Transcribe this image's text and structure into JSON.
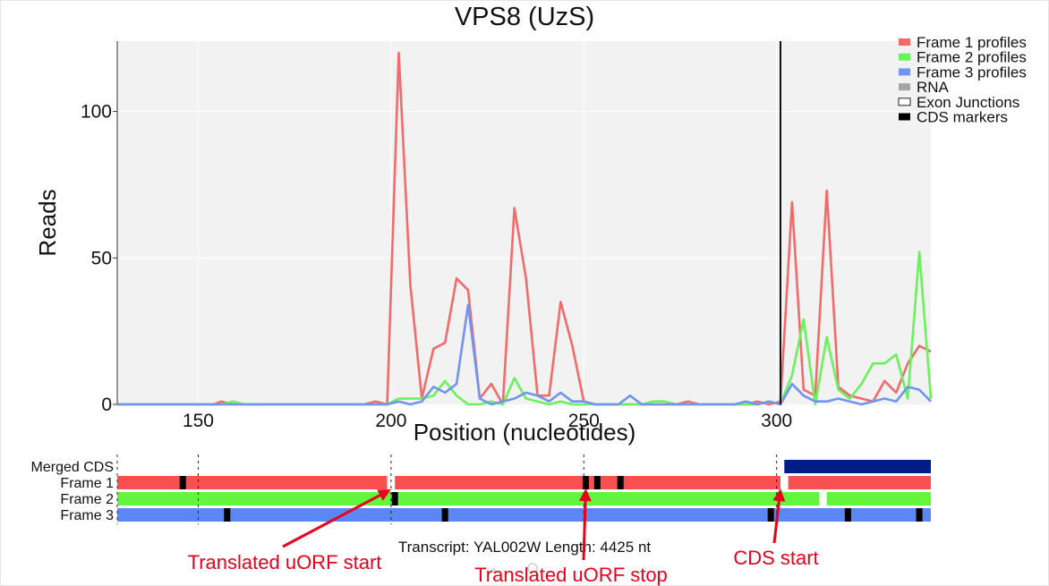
{
  "chart_data": {
    "type": "line",
    "title": "VPS8 (UzS)",
    "xlabel": "Position (nucleotides)",
    "ylabel": "Reads",
    "xlim": [
      129,
      340
    ],
    "ylim": [
      0,
      124
    ],
    "x_ticks": [
      150,
      200,
      250,
      300
    ],
    "y_ticks": [
      0,
      50,
      100
    ],
    "grid": true,
    "legend_position": "top-right",
    "cds_marker_x": 301,
    "series": [
      {
        "name": "Frame 1 profiles",
        "color": "#f26b6b",
        "x": [
          129,
          150,
          154,
          156,
          159,
          162,
          190,
          193,
          196,
          199,
          202,
          205,
          208,
          211,
          214,
          217,
          220,
          223,
          226,
          229,
          232,
          235,
          238,
          241,
          244,
          247,
          250,
          253,
          256,
          259,
          262,
          265,
          268,
          271,
          274,
          277,
          280,
          283,
          286,
          289,
          292,
          295,
          298,
          301,
          304,
          307,
          310,
          313,
          316,
          319,
          322,
          325,
          328,
          331,
          334,
          337,
          340
        ],
        "values": [
          0,
          0,
          0,
          1,
          0,
          0,
          0,
          0,
          1,
          0,
          120,
          41,
          2,
          19,
          21,
          43,
          39,
          2,
          7,
          0,
          67,
          43,
          3,
          3,
          35,
          20,
          1,
          0,
          0,
          0,
          0,
          0,
          0,
          0,
          0,
          1,
          0,
          0,
          0,
          0,
          0,
          1,
          0,
          1,
          69,
          5,
          3,
          73,
          6,
          3,
          2,
          1,
          8,
          4,
          14,
          20,
          18
        ]
      },
      {
        "name": "Frame 2 profiles",
        "color": "#6af25a",
        "x": [
          129,
          150,
          156,
          159,
          162,
          199,
          202,
          205,
          208,
          211,
          214,
          217,
          220,
          223,
          226,
          229,
          232,
          235,
          238,
          241,
          244,
          247,
          250,
          253,
          256,
          259,
          262,
          265,
          268,
          271,
          274,
          277,
          280,
          283,
          286,
          289,
          292,
          295,
          298,
          301,
          304,
          307,
          310,
          313,
          316,
          319,
          322,
          325,
          328,
          331,
          334,
          337,
          340
        ],
        "values": [
          0,
          0,
          0,
          1,
          0,
          0,
          2,
          2,
          2,
          3,
          8,
          3,
          0,
          0,
          1,
          0,
          9,
          2,
          1,
          0,
          1,
          0,
          0,
          0,
          0,
          0,
          0,
          0,
          1,
          1,
          0,
          0,
          0,
          0,
          0,
          0,
          0,
          0,
          1,
          0,
          10,
          29,
          0,
          23,
          5,
          2,
          7,
          14,
          14,
          17,
          2,
          52,
          2
        ]
      },
      {
        "name": "Frame 3 profiles",
        "color": "#6f95f0",
        "x": [
          129,
          199,
          202,
          205,
          208,
          211,
          214,
          217,
          220,
          223,
          226,
          229,
          232,
          235,
          238,
          241,
          244,
          247,
          250,
          253,
          256,
          259,
          262,
          265,
          268,
          271,
          289,
          292,
          295,
          298,
          301,
          304,
          307,
          310,
          313,
          316,
          319,
          322,
          325,
          328,
          331,
          334,
          337,
          340
        ],
        "values": [
          0,
          0,
          1,
          0,
          1,
          6,
          4,
          7,
          34,
          2,
          0,
          1,
          2,
          4,
          3,
          1,
          4,
          1,
          1,
          0,
          0,
          0,
          3,
          0,
          0,
          0,
          0,
          1,
          0,
          1,
          0,
          7,
          3,
          1,
          1,
          2,
          1,
          0,
          1,
          2,
          1,
          6,
          5,
          1
        ]
      },
      {
        "name": "RNA",
        "color": "#a6a6a6",
        "x": [],
        "values": []
      },
      {
        "name": "Exon Junctions",
        "color": "#ffffff",
        "x": [],
        "values": []
      },
      {
        "name": "CDS markers",
        "color": "#000000",
        "x": [],
        "values": []
      }
    ],
    "tracks": [
      {
        "label": "Merged CDS",
        "color": "#001d87",
        "segments": [
          [
            302,
            340
          ]
        ],
        "markers": [],
        "gaps": []
      },
      {
        "label": "Frame 1",
        "color": "#f85050",
        "segments": [
          [
            129,
            340
          ]
        ],
        "markers": [
          146,
          250.5,
          253.5,
          259.5
        ],
        "gaps": [
          [
            199,
            201
          ],
          [
            301,
            303
          ]
        ]
      },
      {
        "label": "Frame 2",
        "color": "#62f53c",
        "segments": [
          [
            129,
            340
          ]
        ],
        "markers": [
          201
        ],
        "gaps": [
          [
            311,
            313
          ]
        ]
      },
      {
        "label": "Frame 3",
        "color": "#5a87f2",
        "segments": [
          [
            129,
            340
          ]
        ],
        "markers": [
          157.5,
          214,
          298.5,
          318.5,
          337
        ],
        "gaps": []
      }
    ],
    "transcript_label": "Transcript: YAL002W Length: 4425 nt",
    "annotations": [
      {
        "text": "Translated uORF start",
        "target_x": 200
      },
      {
        "text": "Translated uORF stop",
        "target_x": 250.5
      },
      {
        "text": "CDS start",
        "target_x": 301
      }
    ]
  }
}
